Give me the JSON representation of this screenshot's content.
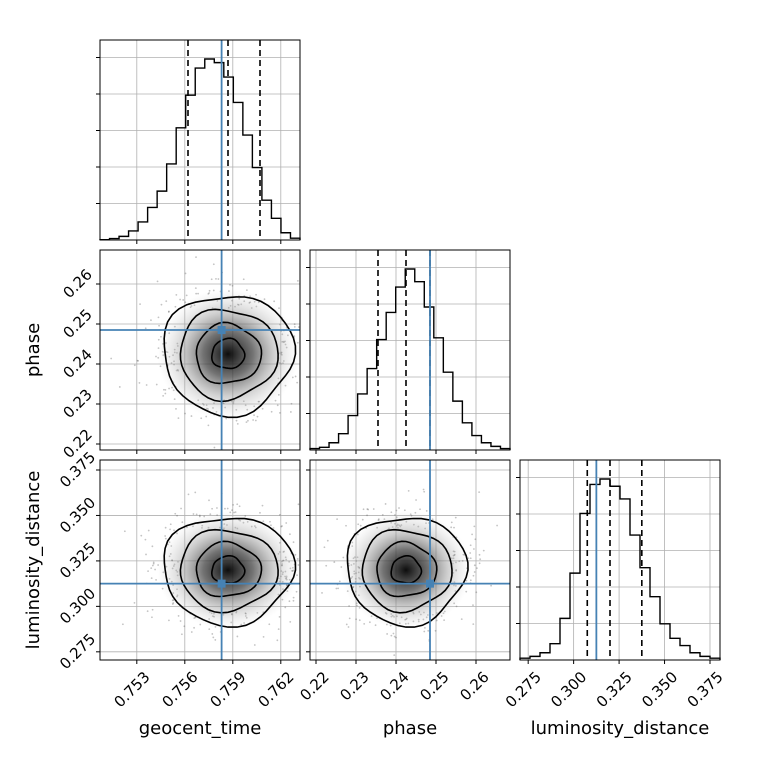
{
  "chart_data": {
    "type": "corner",
    "parameters": [
      "geocent_time",
      "phase",
      "luminosity_distance"
    ],
    "axis_labels": {
      "geocent_time": "geocent_time",
      "phase": "phase",
      "luminosity_distance": "luminosity_distance"
    },
    "ranges": {
      "geocent_time": [
        0.7507,
        0.7632
      ],
      "phase": [
        0.2185,
        0.2685
      ],
      "luminosity_distance": [
        0.2705,
        0.3805
      ]
    },
    "ticks": {
      "geocent_time": [
        "0.753",
        "0.756",
        "0.759",
        "0.762"
      ],
      "phase": [
        "0.22",
        "0.23",
        "0.24",
        "0.25",
        "0.26"
      ],
      "luminosity_distance": [
        "0.275",
        "0.300",
        "0.325",
        "0.350",
        "0.375"
      ]
    },
    "truths": {
      "geocent_time": 0.7583,
      "phase": 0.2485,
      "luminosity_distance": 0.3125
    },
    "quantiles": {
      "geocent_time": [
        0.7562,
        0.7587,
        0.7607
      ],
      "phase": [
        0.2355,
        0.2425,
        0.2485
      ],
      "luminosity_distance": [
        0.3075,
        0.32,
        0.3375
      ]
    },
    "marginals": {
      "geocent_time": {
        "edges": [
          0.7507,
          0.7632
        ],
        "counts": [
          0.2,
          0.8,
          2,
          5,
          10,
          18,
          27,
          42,
          62,
          80,
          95,
          100,
          98,
          90,
          76,
          58,
          40,
          22,
          12,
          4,
          1
        ]
      },
      "phase": {
        "edges": [
          0.2185,
          0.2685
        ],
        "counts": [
          0.8,
          1.5,
          4,
          9,
          19,
          31,
          45,
          61,
          76,
          90,
          100,
          93,
          79,
          62,
          43,
          27,
          15,
          8,
          4,
          2,
          0.8
        ]
      },
      "luminosity_distance": {
        "edges": [
          0.2705,
          0.3805
        ],
        "counts": [
          1,
          2,
          4,
          9,
          23,
          48,
          81,
          97,
          100,
          96,
          89,
          69,
          51,
          35,
          20,
          12,
          8,
          4,
          2,
          1
        ]
      }
    },
    "correlation": "none (circular contours)",
    "grid": true,
    "colors": {
      "truth": "#4682b4",
      "contour": "#000000",
      "histogram": "#000000",
      "quantile": "#000000",
      "grid": "#b0b0b0"
    }
  }
}
